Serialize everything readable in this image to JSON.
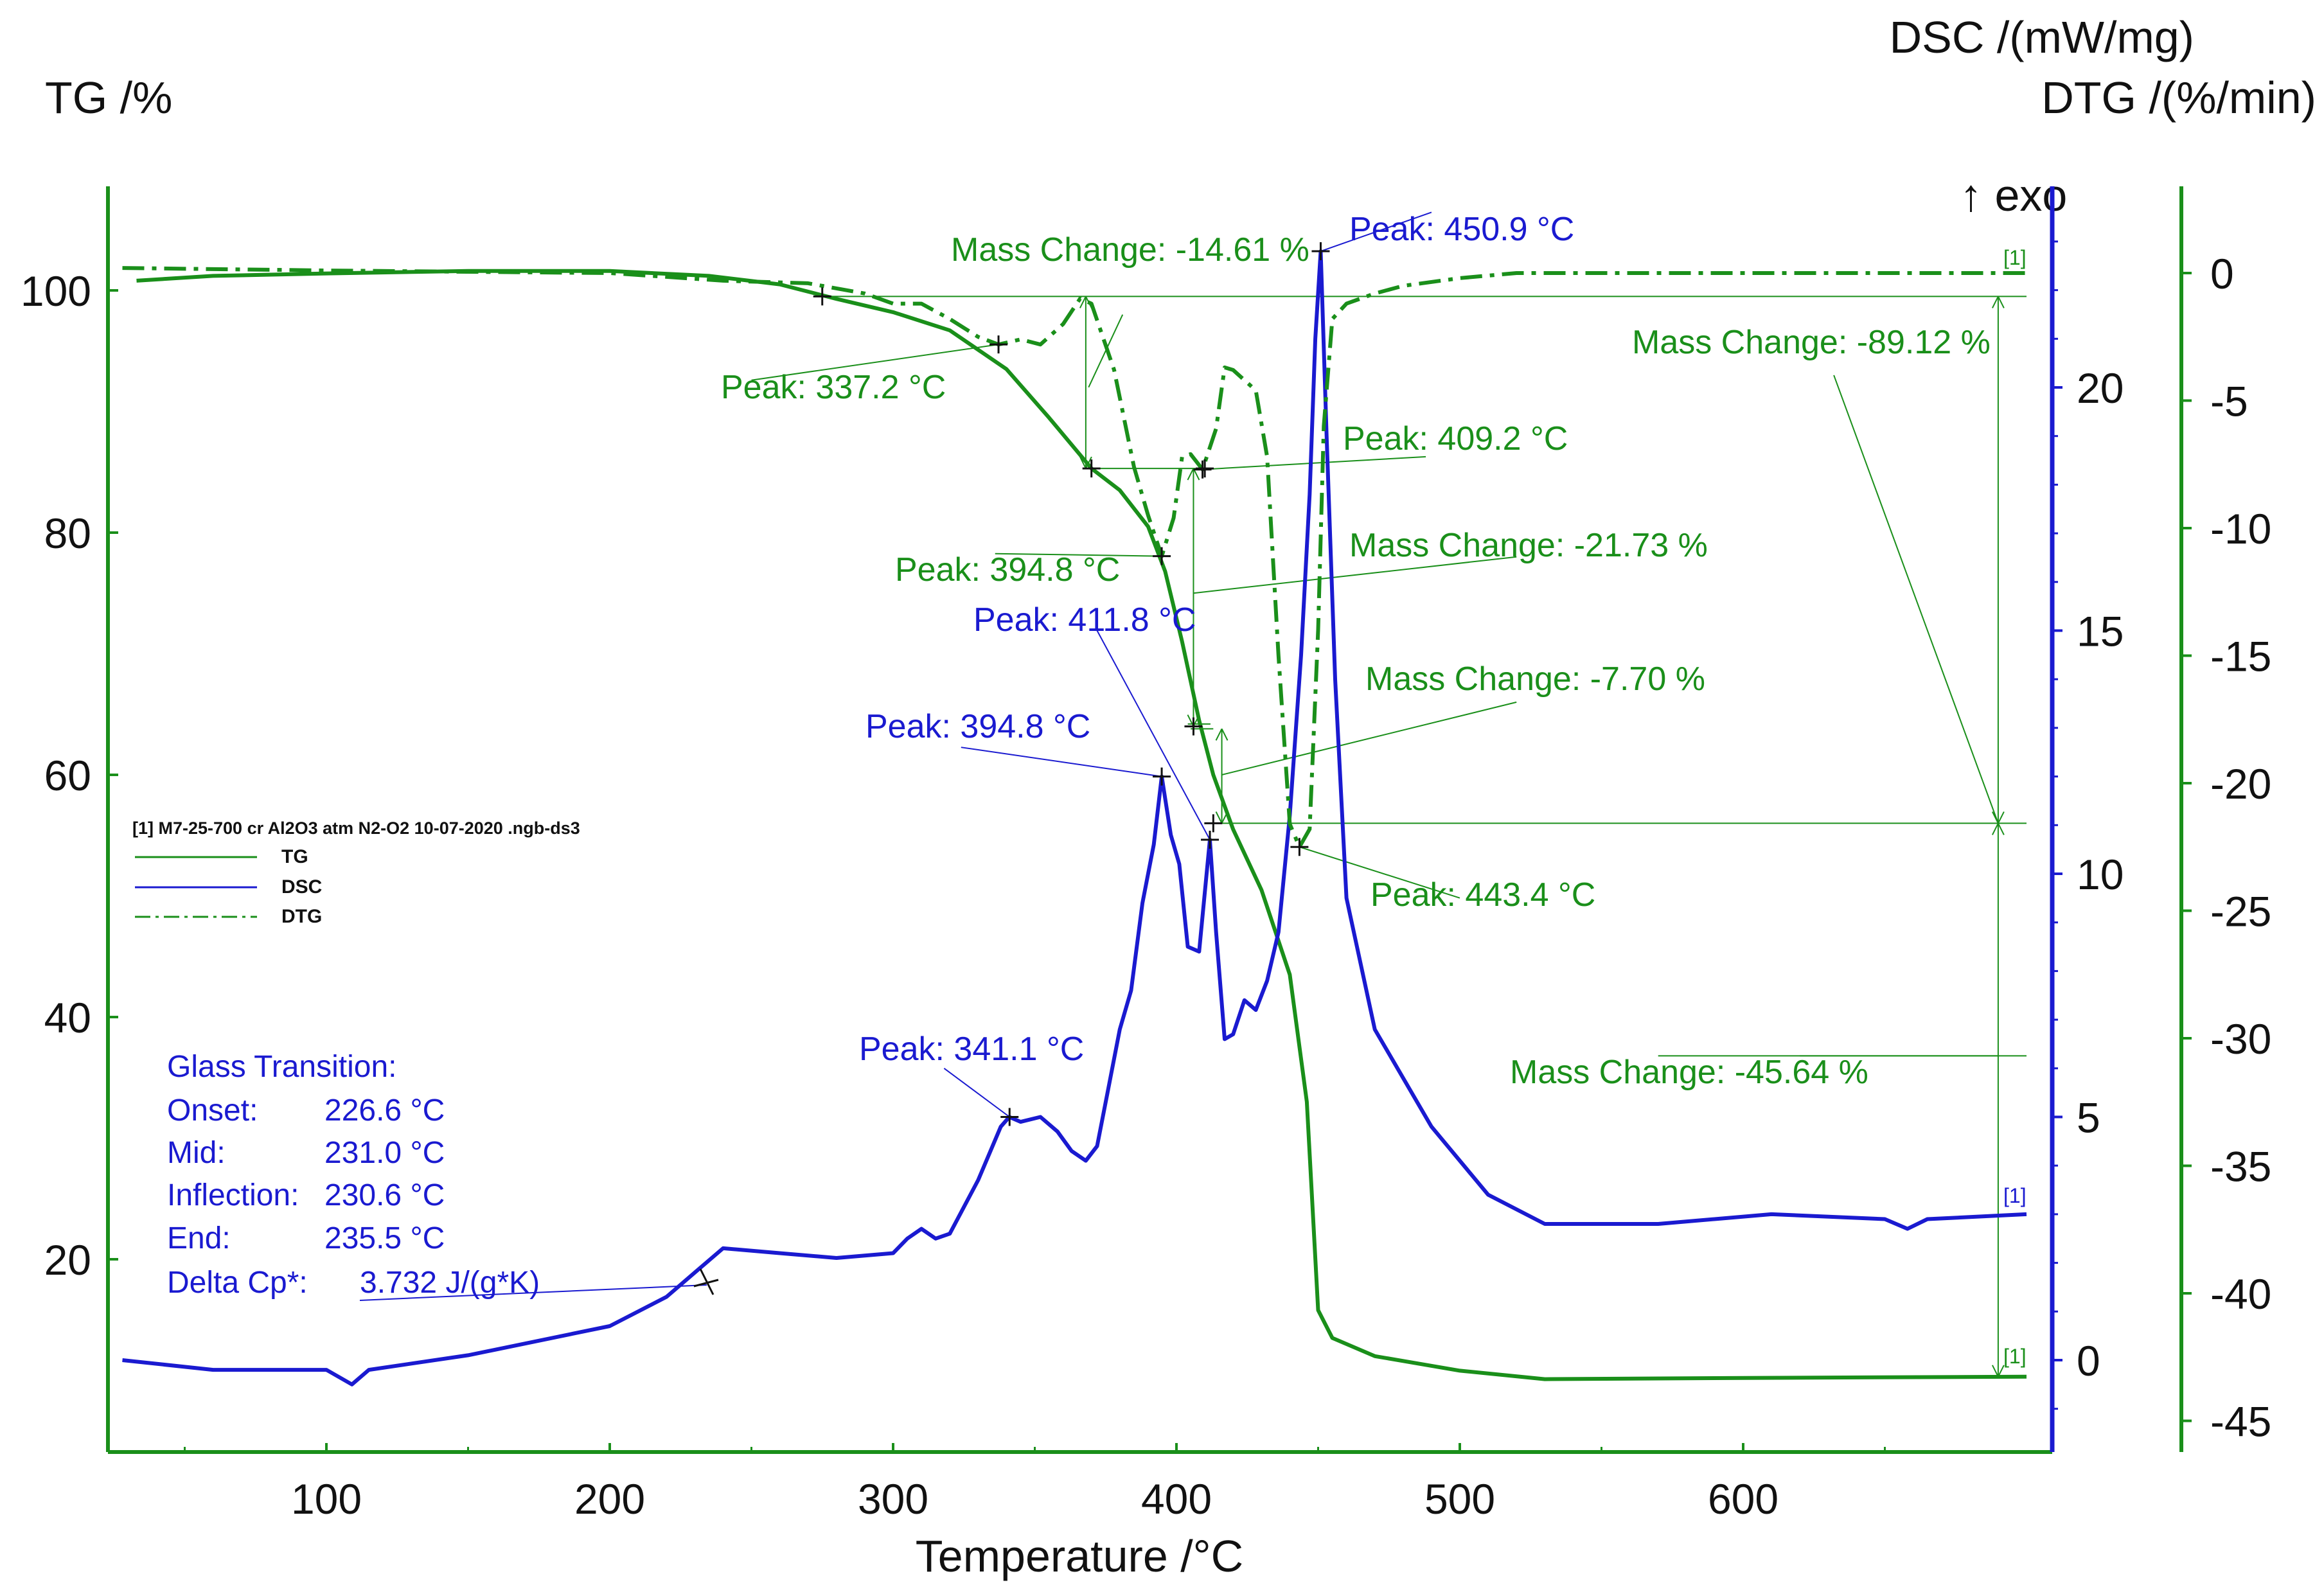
{
  "chart_data": {
    "type": "line",
    "xlabel": "Temperature /°C",
    "xlim": [
      28,
      700
    ],
    "x_ticks": [
      100,
      200,
      300,
      400,
      500,
      600
    ],
    "axes": {
      "tg": {
        "label": "TG /%",
        "lim": [
          6,
          110
        ],
        "ticks": [
          20,
          40,
          60,
          80,
          100
        ],
        "color": "#1a8f1a"
      },
      "dsc": {
        "label": "DSC /(mW/mg)",
        "lim": [
          -2,
          24
        ],
        "ticks": [
          0,
          5,
          10,
          15,
          20
        ],
        "color": "#1a1ad0"
      },
      "dtg": {
        "label": "DTG /(%/min)",
        "lim": [
          -47,
          3
        ],
        "ticks": [
          0,
          -5,
          -10,
          -15,
          -20,
          -25,
          -30,
          -35,
          -40,
          -45
        ],
        "color": "#1a8f1a"
      }
    },
    "exo_label": "↑ exo",
    "curve_marker": "[1]",
    "legend": {
      "title": "[1] M7-25-700 cr Al2O3 atm N2-O2 10-07-2020 .ngb-ds3",
      "items": [
        "TG",
        "DSC",
        "DTG"
      ]
    },
    "series": [
      {
        "name": "TG",
        "axis": "tg",
        "style": "solid",
        "color": "#1a8f1a",
        "points": [
          [
            33,
            100.8
          ],
          [
            60,
            101.2
          ],
          [
            100,
            101.4
          ],
          [
            150,
            101.6
          ],
          [
            200,
            101.6
          ],
          [
            235,
            101.2
          ],
          [
            260,
            100.5
          ],
          [
            280,
            99.3
          ],
          [
            300,
            98.2
          ],
          [
            320,
            96.7
          ],
          [
            340,
            93.5
          ],
          [
            355,
            89.5
          ],
          [
            370,
            85.3
          ],
          [
            380,
            83.5
          ],
          [
            390,
            80.5
          ],
          [
            396,
            76.8
          ],
          [
            402,
            71.0
          ],
          [
            408,
            64.5
          ],
          [
            413,
            60.0
          ],
          [
            420,
            55.5
          ],
          [
            430,
            50.5
          ],
          [
            440,
            43.5
          ],
          [
            446,
            33.0
          ],
          [
            450,
            15.8
          ],
          [
            455,
            13.5
          ],
          [
            470,
            12.0
          ],
          [
            500,
            10.8
          ],
          [
            530,
            10.1
          ],
          [
            600,
            10.2
          ],
          [
            700,
            10.3
          ]
        ]
      },
      {
        "name": "DSC",
        "axis": "dsc",
        "style": "solid",
        "color": "#1a1ad0",
        "points": [
          [
            28,
            0
          ],
          [
            60,
            -0.2
          ],
          [
            100,
            -0.2
          ],
          [
            109,
            -0.5
          ],
          [
            115,
            -0.2
          ],
          [
            150,
            0.1
          ],
          [
            200,
            0.7
          ],
          [
            220,
            1.3
          ],
          [
            230,
            1.8
          ],
          [
            240,
            2.3
          ],
          [
            260,
            2.2
          ],
          [
            280,
            2.1
          ],
          [
            300,
            2.2
          ],
          [
            305,
            2.5
          ],
          [
            310,
            2.7
          ],
          [
            315,
            2.5
          ],
          [
            320,
            2.6
          ],
          [
            330,
            3.7
          ],
          [
            338,
            4.8
          ],
          [
            341,
            5.0
          ],
          [
            345,
            4.9
          ],
          [
            352,
            5.0
          ],
          [
            358,
            4.7
          ],
          [
            363,
            4.3
          ],
          [
            368,
            4.1
          ],
          [
            372,
            4.4
          ],
          [
            376,
            5.6
          ],
          [
            380,
            6.8
          ],
          [
            384,
            7.6
          ],
          [
            388,
            9.4
          ],
          [
            392,
            10.6
          ],
          [
            394.8,
            12.0
          ],
          [
            398,
            10.8
          ],
          [
            401,
            10.2
          ],
          [
            404,
            8.5
          ],
          [
            408,
            8.4
          ],
          [
            411.8,
            10.7
          ],
          [
            414,
            8.8
          ],
          [
            417,
            6.6
          ],
          [
            420,
            6.7
          ],
          [
            424,
            7.4
          ],
          [
            428,
            7.2
          ],
          [
            432,
            7.8
          ],
          [
            436,
            8.8
          ],
          [
            440,
            11.2
          ],
          [
            444,
            14.5
          ],
          [
            447,
            17.8
          ],
          [
            449,
            21.0
          ],
          [
            450.9,
            22.8
          ],
          [
            453,
            19.0
          ],
          [
            456,
            14.0
          ],
          [
            460,
            9.5
          ],
          [
            470,
            6.8
          ],
          [
            490,
            4.8
          ],
          [
            510,
            3.4
          ],
          [
            530,
            2.8
          ],
          [
            570,
            2.8
          ],
          [
            610,
            3.0
          ],
          [
            650,
            2.9
          ],
          [
            658,
            2.7
          ],
          [
            665,
            2.9
          ],
          [
            700,
            3.0
          ]
        ]
      },
      {
        "name": "DTG",
        "axis": "dtg",
        "style": "dashdot",
        "color": "#1a8f1a",
        "points": [
          [
            28,
            0.2
          ],
          [
            100,
            0.1
          ],
          [
            200,
            0
          ],
          [
            240,
            -0.3
          ],
          [
            270,
            -0.4
          ],
          [
            290,
            -0.8
          ],
          [
            300,
            -1.2
          ],
          [
            310,
            -1.2
          ],
          [
            320,
            -1.8
          ],
          [
            330,
            -2.5
          ],
          [
            337.2,
            -2.8
          ],
          [
            345,
            -2.6
          ],
          [
            352,
            -2.8
          ],
          [
            360,
            -2.0
          ],
          [
            366,
            -1.0
          ],
          [
            370,
            -1.2
          ],
          [
            378,
            -3.8
          ],
          [
            385,
            -7.6
          ],
          [
            390,
            -9.5
          ],
          [
            394.8,
            -11.1
          ],
          [
            399,
            -9.6
          ],
          [
            402,
            -7.2
          ],
          [
            405,
            -7.1
          ],
          [
            409.2,
            -7.7
          ],
          [
            414,
            -6.1
          ],
          [
            417,
            -3.7
          ],
          [
            420,
            -3.8
          ],
          [
            428,
            -4.6
          ],
          [
            432,
            -7.2
          ],
          [
            436,
            -15.0
          ],
          [
            440,
            -21.6
          ],
          [
            443.4,
            -22.5
          ],
          [
            447,
            -21.8
          ],
          [
            450,
            -14.0
          ],
          [
            452,
            -6.0
          ],
          [
            455,
            -1.8
          ],
          [
            460,
            -1.2
          ],
          [
            470,
            -0.8
          ],
          [
            480,
            -0.5
          ],
          [
            500,
            -0.2
          ],
          [
            520,
            0
          ],
          [
            600,
            0
          ],
          [
            700,
            0
          ]
        ]
      }
    ],
    "annotations": [
      {
        "text": "Mass Change: -14.61 %",
        "series": "TG"
      },
      {
        "text": "Mass Change: -21.73 %",
        "series": "TG"
      },
      {
        "text": "Mass Change: -7.70 %",
        "series": "TG"
      },
      {
        "text": "Mass Change: -89.12 %",
        "series": "TG"
      },
      {
        "text": "Mass Change: -45.64 %",
        "series": "TG"
      },
      {
        "text": "Peak: 337.2 °C",
        "series": "DTG",
        "x": 337.2
      },
      {
        "text": "Peak: 409.2 °C",
        "series": "DTG",
        "x": 409.2
      },
      {
        "text": "Peak: 394.8 °C",
        "series": "DTG",
        "x": 394.8
      },
      {
        "text": "Peak: 443.4 °C",
        "series": "DTG",
        "x": 443.4
      },
      {
        "text": "Peak: 450.9 °C",
        "series": "DSC",
        "x": 450.9
      },
      {
        "text": "Peak: 411.8 °C",
        "series": "DSC",
        "x": 411.8
      },
      {
        "text": "Peak: 394.8 °C",
        "series": "DSC",
        "x": 394.8
      },
      {
        "text": "Peak: 341.1 °C",
        "series": "DSC",
        "x": 341.1
      }
    ],
    "glass_transition": {
      "title": "Glass Transition:",
      "rows": [
        {
          "label": "Onset:",
          "value": "226.6 °C"
        },
        {
          "label": "Mid:",
          "value": "231.0 °C"
        },
        {
          "label": "Inflection:",
          "value": "230.6 °C"
        },
        {
          "label": "End:",
          "value": "235.5 °C"
        },
        {
          "label": "Delta Cp*:",
          "value": "3.732 J/(g*K)"
        }
      ]
    }
  }
}
